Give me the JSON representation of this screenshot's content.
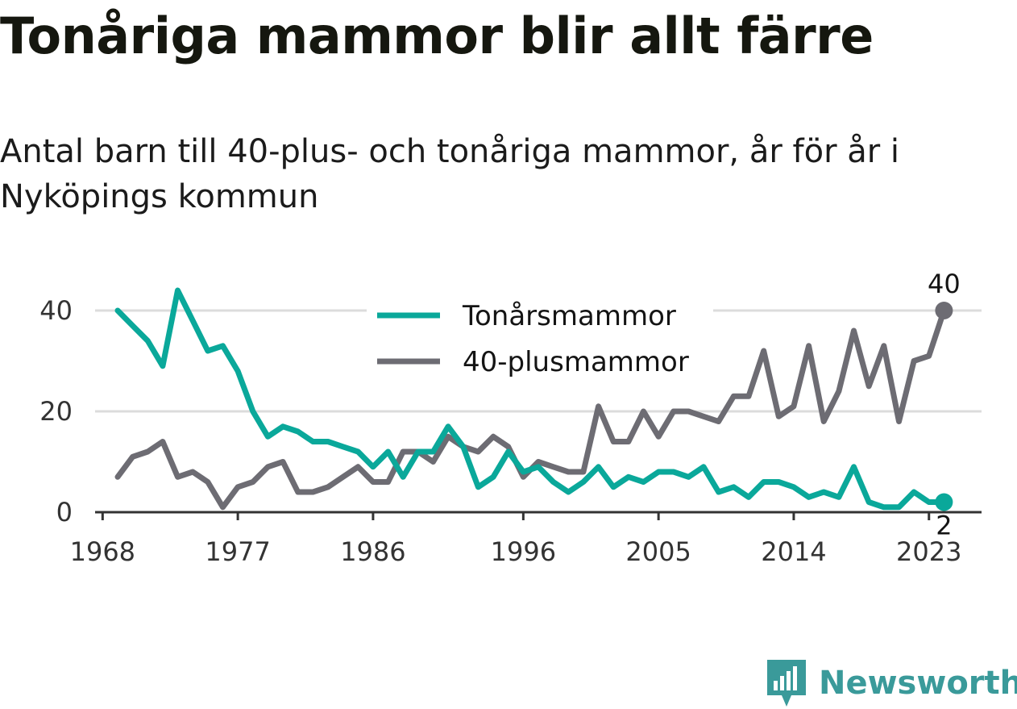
{
  "title": "Tonåriga mammor blir allt färre",
  "subtitle": "Antal barn till 40-plus- och tonåriga mammor, år för år i Nyköpings kommun",
  "brand": {
    "name": "Newsworthy",
    "icon": "newsworthy-logo-icon",
    "color": "#3a9a9a"
  },
  "chart_data": {
    "type": "line",
    "x": [
      1969,
      1970,
      1971,
      1972,
      1973,
      1974,
      1975,
      1976,
      1977,
      1978,
      1979,
      1980,
      1981,
      1982,
      1983,
      1984,
      1985,
      1986,
      1987,
      1988,
      1989,
      1990,
      1991,
      1992,
      1993,
      1994,
      1995,
      1996,
      1997,
      1998,
      1999,
      2000,
      2001,
      2002,
      2003,
      2004,
      2005,
      2006,
      2007,
      2008,
      2009,
      2010,
      2011,
      2012,
      2013,
      2014,
      2015,
      2016,
      2017,
      2018,
      2019,
      2020,
      2021,
      2022,
      2023,
      2024
    ],
    "series": [
      {
        "name": "Tonårsmammor",
        "color": "#0aa89a",
        "values": [
          40,
          37,
          34,
          29,
          44,
          38,
          32,
          33,
          28,
          20,
          15,
          17,
          16,
          14,
          14,
          13,
          12,
          9,
          12,
          7,
          12,
          12,
          17,
          13,
          5,
          7,
          12,
          8,
          9,
          6,
          4,
          6,
          9,
          5,
          7,
          6,
          8,
          8,
          7,
          9,
          4,
          5,
          3,
          6,
          6,
          5,
          3,
          4,
          3,
          9,
          2,
          1,
          1,
          4,
          2,
          2
        ]
      },
      {
        "name": "40-plusmammor",
        "color": "#6d6c73",
        "values": [
          7,
          11,
          12,
          14,
          7,
          8,
          6,
          1,
          5,
          6,
          9,
          10,
          4,
          4,
          5,
          7,
          9,
          6,
          6,
          12,
          12,
          10,
          15,
          13,
          12,
          15,
          13,
          7,
          10,
          9,
          8,
          8,
          21,
          14,
          14,
          20,
          15,
          20,
          20,
          19,
          18,
          23,
          23,
          32,
          19,
          21,
          33,
          18,
          24,
          36,
          25,
          33,
          18,
          30,
          31,
          40
        ]
      }
    ],
    "x_ticks": [
      "1968",
      "1977",
      "1986",
      "1996",
      "2005",
      "2014",
      "2023"
    ],
    "x_tick_values": [
      1968,
      1977,
      1986,
      1996,
      2005,
      2014,
      2023
    ],
    "y_ticks": [
      "0",
      "20",
      "40"
    ],
    "y_tick_values": [
      0,
      20,
      40
    ],
    "xlim": [
      1967.5,
      2026.5
    ],
    "ylim": [
      0,
      44
    ],
    "grid": true,
    "legend_position": "top-center",
    "end_labels": [
      "40",
      "2"
    ],
    "xlabel": "",
    "ylabel": ""
  }
}
